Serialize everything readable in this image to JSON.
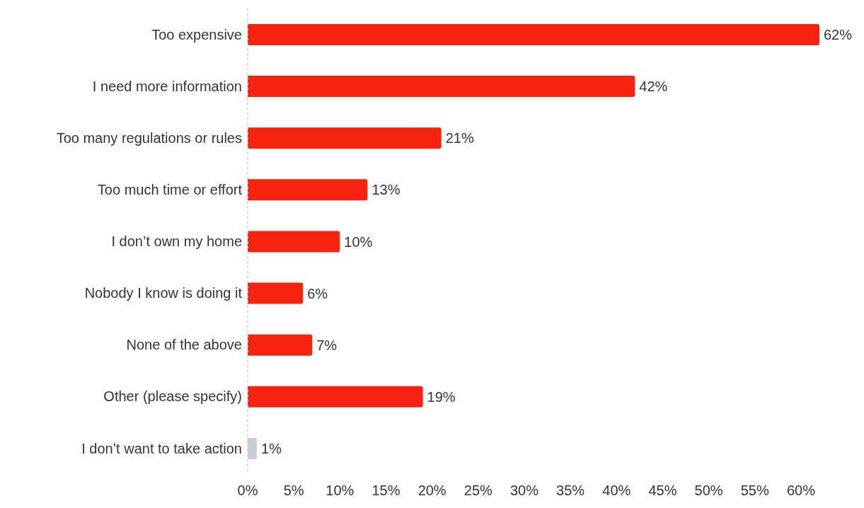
{
  "chart_data": {
    "type": "bar",
    "orientation": "horizontal",
    "categories": [
      "Too expensive",
      "I need more information",
      "Too many regulations or rules",
      "Too much time or effort",
      "I don’t own my home",
      "Nobody I know is doing it",
      "None of the above",
      "Other (please specify)",
      "I don’t want to take action"
    ],
    "values": [
      62,
      42,
      21,
      13,
      10,
      6,
      7,
      19,
      1
    ],
    "value_labels": [
      "62%",
      "42%",
      "21%",
      "13%",
      "10%",
      "6%",
      "7%",
      "19%",
      "1%"
    ],
    "colors": [
      "#f5230f",
      "#f5230f",
      "#f5230f",
      "#f5230f",
      "#f5230f",
      "#f5230f",
      "#f5230f",
      "#f5230f",
      "#c6cfd6"
    ],
    "xlim": [
      0,
      62
    ],
    "xticks": [
      {
        "value": 0,
        "label": "0%"
      },
      {
        "value": 5,
        "label": "5%"
      },
      {
        "value": 10,
        "label": "10%"
      },
      {
        "value": 15,
        "label": "15%"
      },
      {
        "value": 20,
        "label": "20%"
      },
      {
        "value": 25,
        "label": "25%"
      },
      {
        "value": 30,
        "label": "30%"
      },
      {
        "value": 35,
        "label": "35%"
      },
      {
        "value": 40,
        "label": "40%"
      },
      {
        "value": 45,
        "label": "45%"
      },
      {
        "value": 50,
        "label": "50%"
      },
      {
        "value": 55,
        "label": "55%"
      },
      {
        "value": 60,
        "label": "60%"
      }
    ],
    "grid": false,
    "legend": false
  }
}
